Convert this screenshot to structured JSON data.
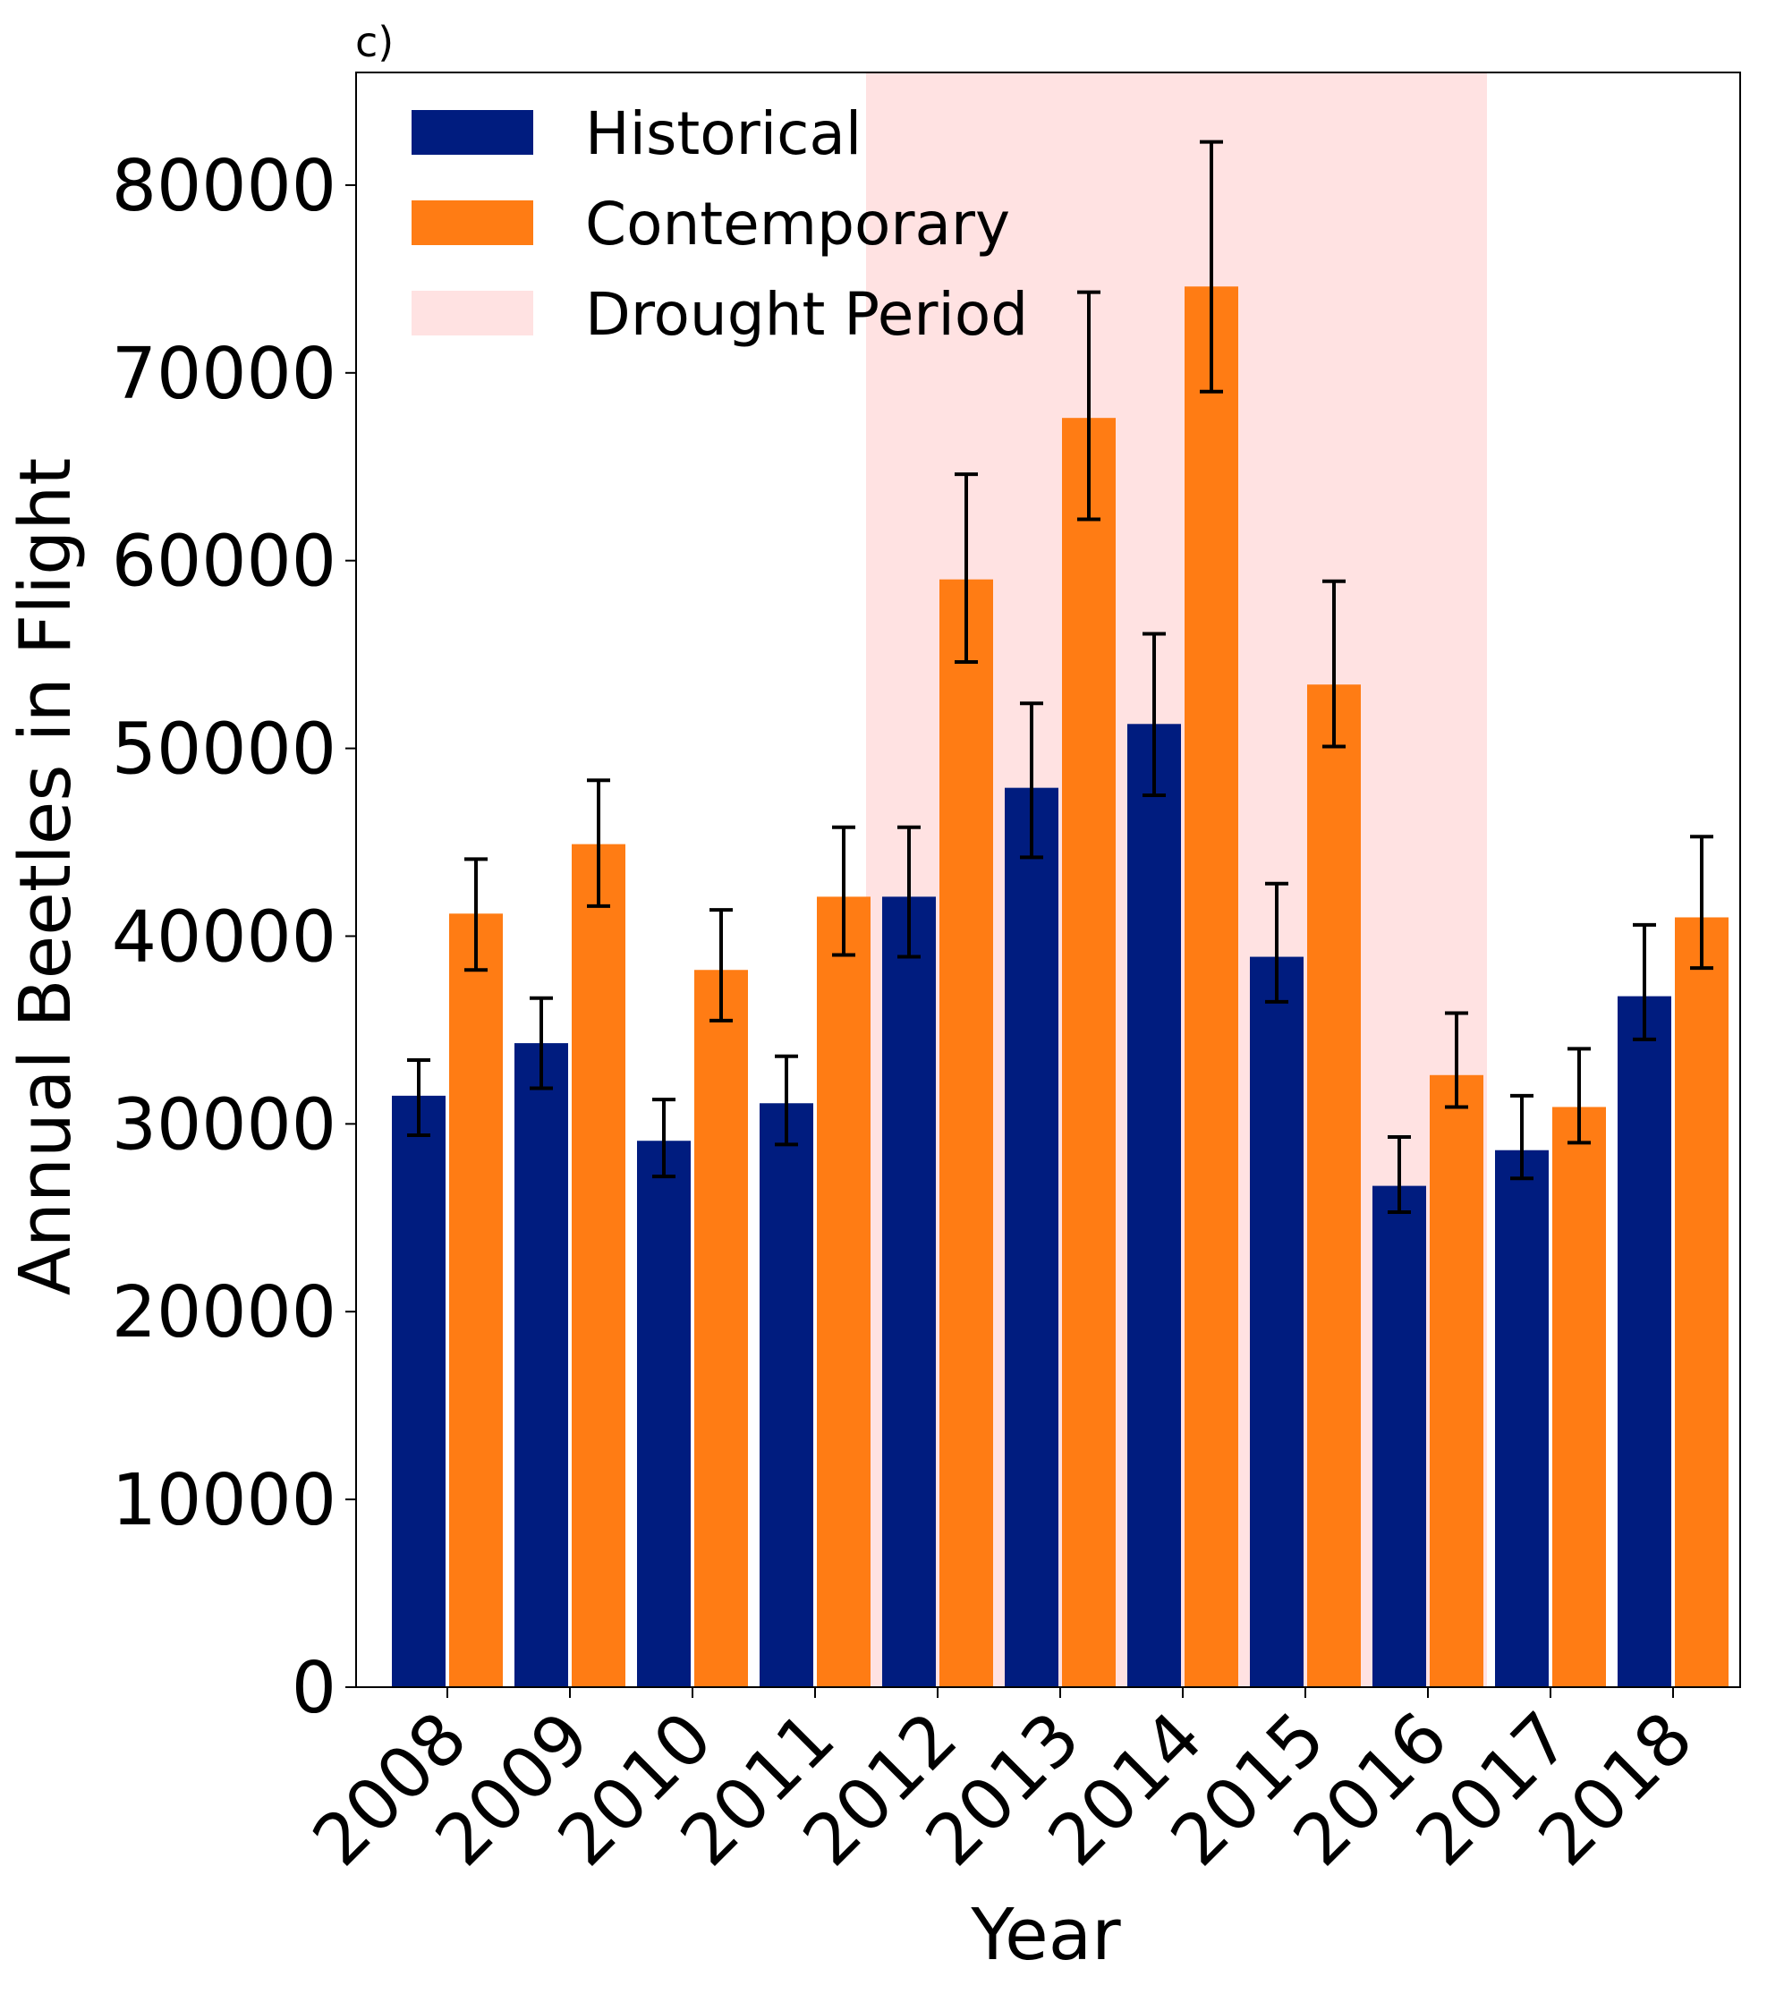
{
  "panel_label": "c)",
  "colors": {
    "historical": "#001c7f",
    "contemporary": "#ff7c14",
    "drought": "#ffe2e2",
    "error_bar": "#000000"
  },
  "legend": {
    "placement": "top-left",
    "items": [
      "Historical",
      "Contemporary",
      "Drought Period"
    ]
  },
  "chart_data": {
    "type": "bar",
    "title": "",
    "xlabel": "Year",
    "ylabel": "Annual Beetles in Flight",
    "categories": [
      "2008",
      "2009",
      "2010",
      "2011",
      "2012",
      "2013",
      "2014",
      "2015",
      "2016",
      "2017",
      "2018"
    ],
    "ylim": [
      0,
      86000
    ],
    "yticks": [
      0,
      10000,
      20000,
      30000,
      40000,
      50000,
      60000,
      70000,
      80000
    ],
    "grid": false,
    "drought_period": [
      "2012",
      "2016"
    ],
    "series": [
      {
        "name": "Historical",
        "values": [
          31500,
          34300,
          29100,
          31100,
          42100,
          47900,
          51300,
          38900,
          26700,
          28600,
          36800
        ],
        "error_low": [
          29400,
          31900,
          27200,
          28900,
          38900,
          44200,
          47500,
          36500,
          25300,
          27100,
          34500
        ],
        "error_high": [
          33400,
          36700,
          31300,
          33600,
          45800,
          52400,
          56100,
          42800,
          29300,
          31500,
          40600
        ]
      },
      {
        "name": "Contemporary",
        "values": [
          41200,
          44900,
          38200,
          42100,
          59000,
          67600,
          74600,
          53400,
          32600,
          30900,
          41000
        ],
        "error_low": [
          38200,
          41600,
          35500,
          39000,
          54600,
          62200,
          69000,
          50100,
          30900,
          29000,
          38300
        ],
        "error_high": [
          44100,
          48300,
          41400,
          45800,
          64600,
          74300,
          82300,
          58900,
          35900,
          34000,
          45300
        ]
      }
    ]
  }
}
